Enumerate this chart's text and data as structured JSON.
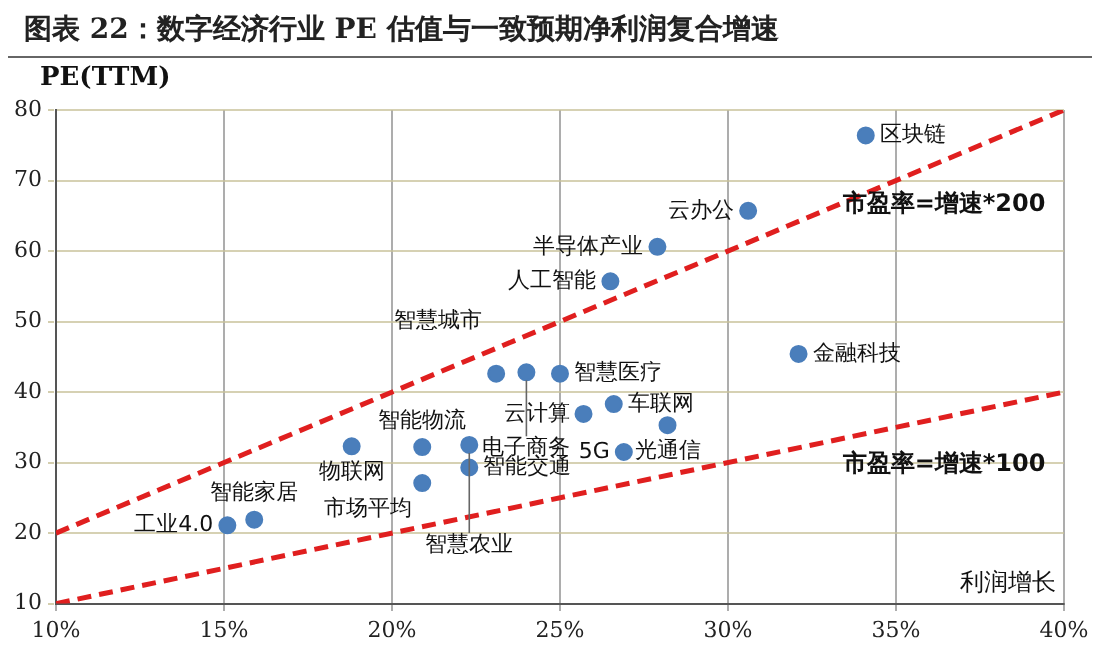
{
  "chart_data": {
    "type": "scatter",
    "title": "图表 22：数字经济行业 PE 估值与一致预期净利润复合增速",
    "xlabel": "利润增长",
    "ylabel": "PE(TTM)",
    "xlim": [
      10,
      40
    ],
    "xticks": [
      {
        "value": 10,
        "label": "10%"
      },
      {
        "value": 15,
        "label": "15%"
      },
      {
        "value": 20,
        "label": "20%"
      },
      {
        "value": 25,
        "label": "25%"
      },
      {
        "value": 30,
        "label": "30%"
      },
      {
        "value": 35,
        "label": "35%"
      },
      {
        "value": 40,
        "label": "40%"
      }
    ],
    "ylim": [
      10,
      80
    ],
    "yticks": [
      10,
      20,
      30,
      40,
      50,
      60,
      70,
      80
    ],
    "grid": true,
    "legend": false,
    "series": [
      {
        "type": "scatter",
        "color": "#4a7ebb",
        "marker": "circle",
        "x": [
          34.1,
          30.6,
          27.9,
          26.5,
          32.1,
          26.6,
          25.7,
          28.2,
          26.9,
          23.1,
          24.0,
          25.0,
          20.9,
          18.8,
          22.3,
          22.3,
          20.9,
          15.9,
          15.1
        ],
        "values": [
          76.4,
          65.7,
          60.6,
          55.7,
          45.4,
          38.3,
          36.9,
          35.3,
          31.5,
          42.6,
          42.8,
          42.6,
          32.2,
          32.3,
          32.5,
          29.3,
          27.1,
          21.9,
          21.1
        ]
      },
      {
        "type": "line",
        "name": "市盈率=增速*200",
        "color": "#e01f1f",
        "line_style": "dashed",
        "marker": "none",
        "x": [
          10,
          40
        ],
        "values": [
          20,
          80
        ]
      },
      {
        "type": "line",
        "name": "市盈率=增速*100",
        "color": "#e01f1f",
        "line_style": "dashed",
        "marker": "none",
        "x": [
          10,
          40
        ],
        "values": [
          10,
          40
        ]
      }
    ],
    "annotations": [
      {
        "text": "区块链",
        "x": 34.1,
        "y": 76.4
      },
      {
        "text": "云办公",
        "x": 30.6,
        "y": 65.7
      },
      {
        "text": "半导体产业",
        "x": 27.9,
        "y": 60.6
      },
      {
        "text": "人工智能",
        "x": 26.5,
        "y": 55.7
      },
      {
        "text": "金融科技",
        "x": 32.1,
        "y": 45.4
      },
      {
        "text": "车联网",
        "x": 26.6,
        "y": 38.3
      },
      {
        "text": "云计算",
        "x": 25.7,
        "y": 36.9
      },
      {
        "text": "光通信",
        "x": 28.2,
        "y": 35.3
      },
      {
        "text": "5G",
        "x": 26.9,
        "y": 31.5
      },
      {
        "text": "智慧城市",
        "x": 23.1,
        "y": 42.6
      },
      {
        "text": "电子商务",
        "x": 24.0,
        "y": 42.8
      },
      {
        "text": "智慧医疗",
        "x": 25.0,
        "y": 42.6
      },
      {
        "text": "智能物流",
        "x": 20.9,
        "y": 32.2
      },
      {
        "text": "物联网",
        "x": 18.8,
        "y": 32.3
      },
      {
        "text": "智慧农业",
        "x": 22.3,
        "y": 32.5
      },
      {
        "text": "智能交通",
        "x": 22.3,
        "y": 29.3
      },
      {
        "text": "市场平均",
        "x": 20.9,
        "y": 27.1
      },
      {
        "text": "智能家居",
        "x": 15.9,
        "y": 21.9
      },
      {
        "text": "工业4.0",
        "x": 15.1,
        "y": 21.1
      }
    ]
  }
}
